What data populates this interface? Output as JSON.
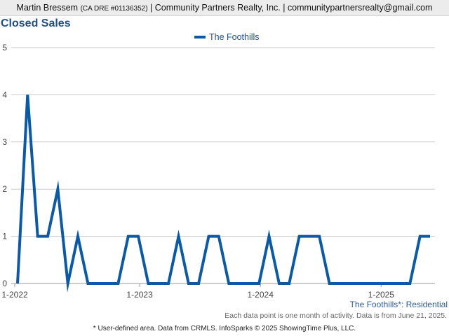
{
  "header": {
    "agent_name": "Martin Bressem",
    "license": "(CA DRE #01136352)",
    "company": "| Community Partners Realty, Inc. | communitypartnersrealty@gmail.com"
  },
  "chart_data": {
    "type": "line",
    "title": "Closed Sales",
    "xlabel": "",
    "ylabel": "",
    "ylim": [
      0,
      5
    ],
    "y_ticks": [
      "0",
      "1",
      "2",
      "3",
      "4",
      "5"
    ],
    "x_ticks": [
      "1-2022",
      "1-2023",
      "1-2024",
      "1-2025"
    ],
    "x_tick_index": [
      0,
      12,
      24,
      36
    ],
    "grid": true,
    "legend_position": "top-center",
    "series": [
      {
        "name": "The Foothills",
        "color": "#0c5aa6",
        "x": [
          "1-2022",
          "2-2022",
          "3-2022",
          "4-2022",
          "5-2022",
          "6-2022",
          "7-2022",
          "8-2022",
          "9-2022",
          "10-2022",
          "11-2022",
          "12-2022",
          "1-2023",
          "2-2023",
          "3-2023",
          "4-2023",
          "5-2023",
          "6-2023",
          "7-2023",
          "8-2023",
          "9-2023",
          "10-2023",
          "11-2023",
          "12-2023",
          "1-2024",
          "2-2024",
          "3-2024",
          "4-2024",
          "5-2024",
          "6-2024",
          "7-2024",
          "8-2024",
          "9-2024",
          "10-2024",
          "11-2024",
          "12-2024",
          "1-2025",
          "2-2025",
          "3-2025",
          "4-2025",
          "5-2025",
          "6-2025"
        ],
        "values": [
          0,
          4,
          1,
          1,
          2,
          0,
          1,
          0,
          0,
          0,
          0,
          1,
          1,
          0,
          0,
          0,
          1,
          0,
          0,
          1,
          1,
          0,
          0,
          0,
          0,
          1,
          0,
          0,
          1,
          1,
          1,
          0,
          0,
          0,
          0,
          0,
          0,
          0,
          0,
          0,
          1,
          1
        ]
      }
    ]
  },
  "footer": {
    "area_label": "The Foothills*: Residential",
    "note": "Each data point is one month of activity. Data is from June 21, 2025.",
    "source": "* User-defined area. Data from CRMLS. InfoSparks © 2025 ShowingTime Plus, LLC."
  }
}
